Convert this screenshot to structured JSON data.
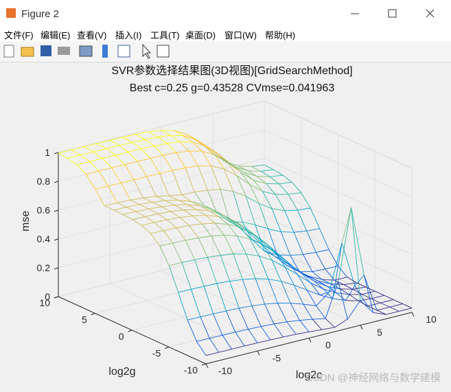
{
  "window": {
    "title": "Figure 2"
  },
  "menu": [
    "文件(F)",
    "编辑(E)",
    "查看(V)",
    "插入(I)",
    "工具(T)",
    "桌面(D)",
    "窗口(W)",
    "帮助(H)"
  ],
  "chart_data": {
    "type": "surface",
    "title": "SVR参数选择结果图(3D视图)[GridSearchMethod]",
    "subtitle": "Best c=0.25 g=0.43528 CVmse=0.041963",
    "xlabel": "log2c",
    "ylabel": "log2g",
    "zlabel": "mse",
    "xlim": [
      -10,
      10
    ],
    "xticks": [
      -10,
      -5,
      0,
      5,
      10
    ],
    "ylim": [
      -10,
      10
    ],
    "yticks": [
      -10,
      -5,
      0,
      5,
      10
    ],
    "zlim": [
      0,
      1
    ],
    "zticks": [
      0,
      0.2,
      0.4,
      0.6,
      0.8,
      1
    ],
    "grid": true
  },
  "watermark": "CSDN @神经网络与数学建模"
}
